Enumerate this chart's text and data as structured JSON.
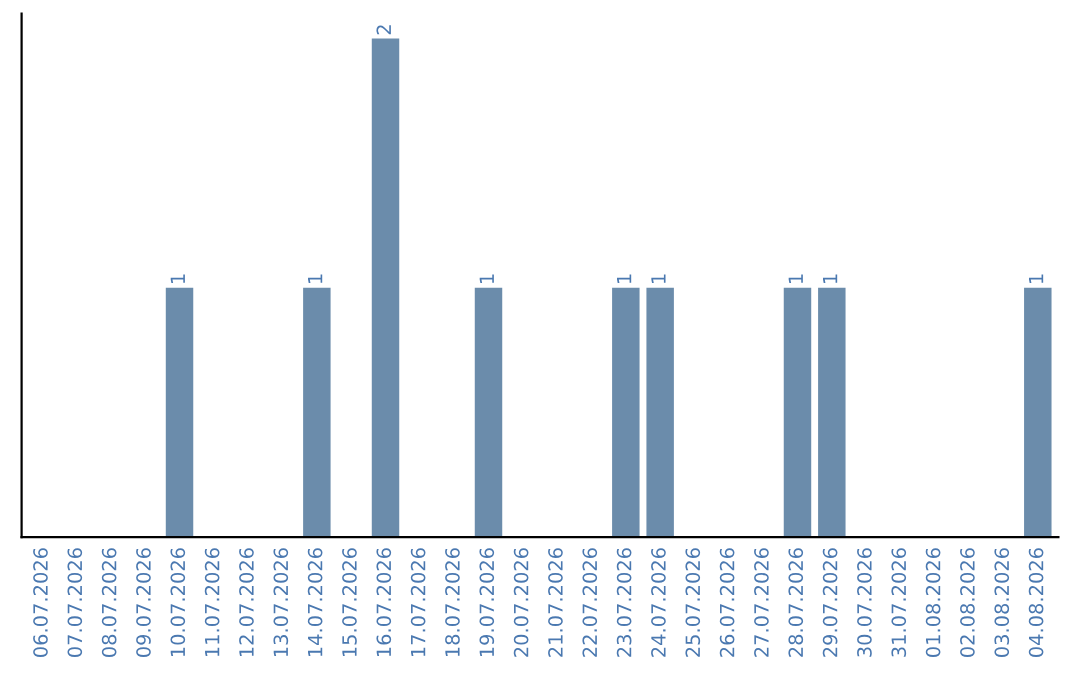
{
  "chart_data": {
    "type": "bar",
    "categories": [
      "06.07.2026",
      "07.07.2026",
      "08.07.2026",
      "09.07.2026",
      "10.07.2026",
      "11.07.2026",
      "12.07.2026",
      "13.07.2026",
      "14.07.2026",
      "15.07.2026",
      "16.07.2026",
      "17.07.2026",
      "18.07.2026",
      "19.07.2026",
      "20.07.2026",
      "21.07.2026",
      "22.07.2026",
      "23.07.2026",
      "24.07.2026",
      "25.07.2026",
      "26.07.2026",
      "27.07.2026",
      "28.07.2026",
      "29.07.2026",
      "30.07.2026",
      "31.07.2026",
      "01.08.2026",
      "02.08.2026",
      "03.08.2026",
      "04.08.2026"
    ],
    "values": [
      0,
      0,
      0,
      0,
      1,
      0,
      0,
      0,
      1,
      0,
      2,
      0,
      0,
      1,
      0,
      0,
      0,
      1,
      1,
      0,
      0,
      0,
      1,
      1,
      0,
      0,
      0,
      0,
      0,
      1
    ],
    "value_labels": [
      null,
      null,
      null,
      null,
      "1",
      null,
      null,
      null,
      "1",
      null,
      "2",
      null,
      null,
      "1",
      null,
      null,
      null,
      "1",
      "1",
      null,
      null,
      null,
      "1",
      "1",
      null,
      null,
      null,
      null,
      null,
      "1"
    ],
    "color": "#6b8cab",
    "ylim": [
      0,
      2.1
    ],
    "tick_labels": "x",
    "grid": false,
    "legend": false
  }
}
